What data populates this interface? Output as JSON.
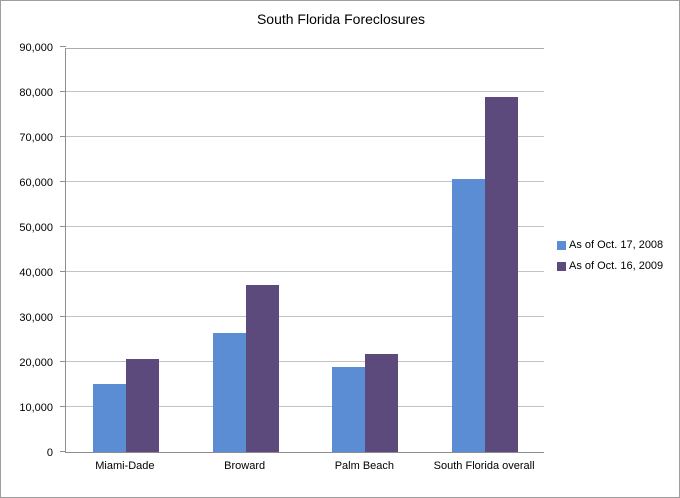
{
  "window": {
    "background": "#ffffff",
    "border_color": "#9e9e9e"
  },
  "chart_data": {
    "type": "bar",
    "title": "South Florida Foreclosures",
    "categories": [
      "Miami-Dade",
      "Broward",
      "Palm Beach",
      "South Florida overall"
    ],
    "series": [
      {
        "name": "As of Oct. 17, 2008",
        "color": "#5b8dd5",
        "values": [
          15200,
          26500,
          18800,
          60700
        ]
      },
      {
        "name": "As of Oct. 16, 2009",
        "color": "#5d4a7c",
        "values": [
          20700,
          37100,
          21700,
          79000
        ]
      }
    ],
    "xlabel": "",
    "ylabel": "",
    "ylim": [
      0,
      90000
    ],
    "ytick_step": 10000,
    "ytick_labels": [
      "0",
      "10,000",
      "20,000",
      "30,000",
      "40,000",
      "50,000",
      "60,000",
      "70,000",
      "80,000",
      "90,000"
    ],
    "grid": true,
    "legend_position": "right",
    "gridline_color": "#c3c3c3",
    "axis_color": "#8e8e8e",
    "text_color": "#000000"
  }
}
